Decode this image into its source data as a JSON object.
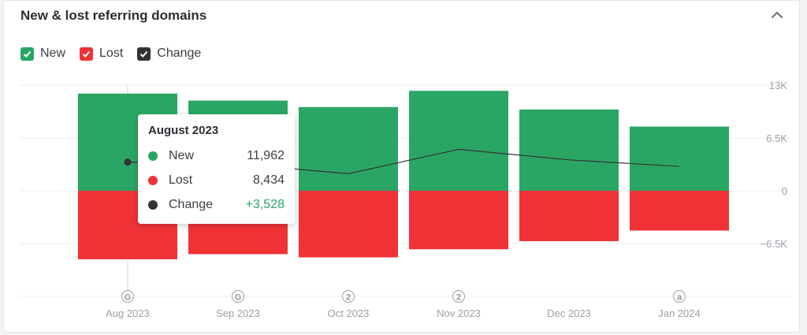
{
  "header": {
    "title": "New & lost referring domains"
  },
  "icons": {
    "collapse": "chevron-up-icon",
    "checkbox": "check-icon",
    "marker": "annotation-marker-icon"
  },
  "legend": [
    {
      "label": "New",
      "color": "#2aa664"
    },
    {
      "label": "Lost",
      "color": "#f03237"
    },
    {
      "label": "Change",
      "color": "#333333"
    }
  ],
  "tooltip": {
    "title": "August 2023",
    "rows": [
      {
        "label": "New",
        "value": "11,962",
        "color": "#2aa664"
      },
      {
        "label": "Lost",
        "value": "8,434",
        "color": "#f03237"
      },
      {
        "label": "Change",
        "value": "+3,528",
        "color": "#333333",
        "value_color": "#2aa664"
      }
    ]
  },
  "chart_data": {
    "type": "bar",
    "categories": [
      "Aug 2023",
      "Sep 2023",
      "Oct 2023",
      "Nov 2023",
      "Dec 2023",
      "Jan 2024"
    ],
    "series": [
      {
        "name": "New",
        "type": "bar",
        "color": "#2aa664",
        "values": [
          11962,
          11100,
          10300,
          12300,
          10000,
          7900
        ]
      },
      {
        "name": "Lost",
        "type": "bar",
        "color": "#f03237",
        "values": [
          -8434,
          -7800,
          -8200,
          -7200,
          -6200,
          -4900
        ]
      },
      {
        "name": "Change",
        "type": "line",
        "color": "#333333",
        "values": [
          3528,
          3300,
          2100,
          5100,
          3800,
          3000
        ]
      }
    ],
    "markers": [
      "G",
      "G",
      "2",
      "2",
      "",
      "a"
    ],
    "yticks": [
      {
        "value": 13000,
        "label": "13K"
      },
      {
        "value": 6500,
        "label": "6.5K"
      },
      {
        "value": 0,
        "label": "0"
      },
      {
        "value": -6500,
        "label": "−6.5K"
      }
    ],
    "ylim": [
      -13000,
      13000
    ],
    "grid": true,
    "legend_position": "top-left",
    "highlight_index": 0
  }
}
